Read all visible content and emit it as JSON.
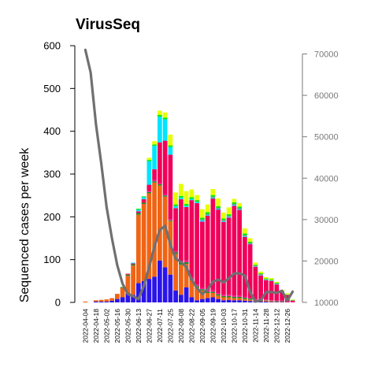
{
  "chart_data": {
    "type": "bar",
    "title": "VirusSeq",
    "xlabel": "",
    "ylabel": "Sequenced cases per week",
    "ylim": [
      0,
      600
    ],
    "y2lim": [
      10000,
      72000
    ],
    "left_ticks": [
      "0",
      "100",
      "200",
      "300",
      "400",
      "500",
      "600"
    ],
    "left_tick_values": [
      0,
      100,
      200,
      300,
      400,
      500,
      600
    ],
    "right_ticks": [
      "10000",
      "20000",
      "30000",
      "40000",
      "50000",
      "60000",
      "70000"
    ],
    "right_tick_values": [
      10000,
      20000,
      30000,
      40000,
      50000,
      60000,
      70000
    ],
    "categories": [
      "2022-04-04",
      "2022-04-11",
      "2022-04-18",
      "2022-04-25",
      "2022-05-02",
      "2022-05-09",
      "2022-05-16",
      "2022-05-23",
      "2022-05-30",
      "2022-06-06",
      "2022-06-13",
      "2022-06-20",
      "2022-06-27",
      "2022-07-04",
      "2022-07-11",
      "2022-07-18",
      "2022-07-25",
      "2022-08-01",
      "2022-08-08",
      "2022-08-15",
      "2022-08-22",
      "2022-08-29",
      "2022-09-05",
      "2022-09-12",
      "2022-09-19",
      "2022-09-26",
      "2022-10-03",
      "2022-10-10",
      "2022-10-17",
      "2022-10-24",
      "2022-10-31",
      "2022-11-07",
      "2022-11-14",
      "2022-11-21",
      "2022-11-28",
      "2022-12-05",
      "2022-12-12",
      "2022-12-19",
      "2022-12-26",
      "2023-01-02"
    ],
    "tick_labels": [
      "2022-04-04",
      "2022-04-18",
      "2022-05-02",
      "2022-05-16",
      "2022-05-30",
      "2022-06-13",
      "2022-06-27",
      "2022-07-11",
      "2022-07-25",
      "2022-08-08",
      "2022-08-22",
      "2022-09-05",
      "2022-09-19",
      "2022-10-03",
      "2022-10-17",
      "2022-10-31",
      "2022-11-14",
      "2022-11-28",
      "2022-12-12",
      "2022-12-26"
    ],
    "series": [
      {
        "color": "#2a14e8",
        "values": [
          0,
          0,
          2,
          2,
          2,
          4,
          8,
          12,
          22,
          18,
          45,
          50,
          55,
          60,
          98,
          82,
          65,
          28,
          18,
          35,
          12,
          5,
          8,
          10,
          12,
          8,
          5,
          6,
          5,
          5,
          4,
          3,
          2,
          2,
          2,
          1,
          1,
          1,
          0,
          0
        ]
      },
      {
        "color": "#f06414",
        "values": [
          2,
          0,
          3,
          4,
          5,
          6,
          12,
          22,
          40,
          68,
          160,
          180,
          200,
          220,
          175,
          165,
          125,
          85,
          70,
          55,
          40,
          30,
          20,
          12,
          10,
          8,
          7,
          6,
          5,
          5,
          4,
          3,
          2,
          2,
          2,
          2,
          1,
          1,
          0,
          0
        ]
      },
      {
        "color": "#228b22",
        "values": [
          0,
          0,
          0,
          0,
          0,
          0,
          0,
          2,
          3,
          3,
          4,
          3,
          3,
          3,
          3,
          3,
          2,
          4,
          5,
          4,
          3,
          3,
          3,
          3,
          3,
          3,
          3,
          3,
          3,
          3,
          3,
          3,
          2,
          2,
          1,
          1,
          1,
          1,
          0,
          0
        ]
      },
      {
        "color": "#ff1493",
        "values": [
          0,
          0,
          0,
          0,
          0,
          0,
          0,
          0,
          0,
          0,
          0,
          0,
          2,
          3,
          3,
          3,
          3,
          3,
          3,
          4,
          4,
          4,
          3,
          3,
          3,
          3,
          3,
          3,
          3,
          3,
          2,
          2,
          2,
          2,
          2,
          1,
          1,
          1,
          1,
          1
        ]
      },
      {
        "color": "#f0005a",
        "values": [
          0,
          0,
          0,
          0,
          0,
          0,
          0,
          0,
          2,
          2,
          4,
          8,
          15,
          25,
          95,
          125,
          150,
          100,
          145,
          125,
          180,
          190,
          155,
          175,
          215,
          195,
          170,
          180,
          210,
          200,
          140,
          125,
          75,
          55,
          45,
          45,
          38,
          20,
          16,
          3
        ]
      },
      {
        "color": "#00e5ff",
        "values": [
          0,
          0,
          0,
          0,
          0,
          0,
          0,
          0,
          0,
          2,
          4,
          5,
          55,
          55,
          60,
          50,
          18,
          5,
          4,
          3,
          3,
          3,
          3,
          2,
          2,
          2,
          2,
          2,
          2,
          2,
          2,
          1,
          1,
          1,
          1,
          1,
          1,
          0,
          0,
          0
        ]
      },
      {
        "color": "#7f7f7f",
        "values": [
          0,
          0,
          0,
          0,
          0,
          0,
          0,
          0,
          0,
          0,
          0,
          0,
          0,
          0,
          0,
          0,
          0,
          0,
          0,
          0,
          0,
          0,
          2,
          2,
          2,
          2,
          2,
          2,
          2,
          2,
          2,
          2,
          2,
          2,
          1,
          1,
          1,
          1,
          1,
          1
        ]
      },
      {
        "color": "#00ee00",
        "values": [
          0,
          0,
          0,
          0,
          0,
          0,
          0,
          0,
          0,
          0,
          2,
          2,
          3,
          3,
          4,
          4,
          4,
          4,
          4,
          4,
          4,
          4,
          4,
          4,
          4,
          4,
          4,
          4,
          4,
          4,
          4,
          3,
          2,
          2,
          2,
          2,
          2,
          2,
          1,
          1
        ]
      },
      {
        "color": "#e6ff00",
        "values": [
          0,
          0,
          0,
          0,
          0,
          0,
          0,
          0,
          0,
          0,
          0,
          0,
          5,
          8,
          10,
          12,
          25,
          28,
          28,
          30,
          18,
          12,
          20,
          18,
          14,
          18,
          14,
          16,
          8,
          8,
          12,
          8,
          5,
          4,
          3,
          3,
          2,
          2,
          2,
          1
        ]
      }
    ],
    "line": {
      "color": "#707070",
      "axis": "right",
      "values": [
        71000,
        65500,
        53000,
        43500,
        33000,
        25500,
        19000,
        14500,
        12000,
        11500,
        10800,
        14000,
        18500,
        23500,
        27500,
        28500,
        24000,
        20500,
        19800,
        18500,
        15500,
        13500,
        12000,
        13200,
        15000,
        15500,
        14800,
        15800,
        17000,
        17000,
        16500,
        12500,
        10200,
        10500,
        12500,
        12500,
        12300,
        12800,
        10400,
        12600
      ]
    },
    "grid": false,
    "legend": "none"
  }
}
